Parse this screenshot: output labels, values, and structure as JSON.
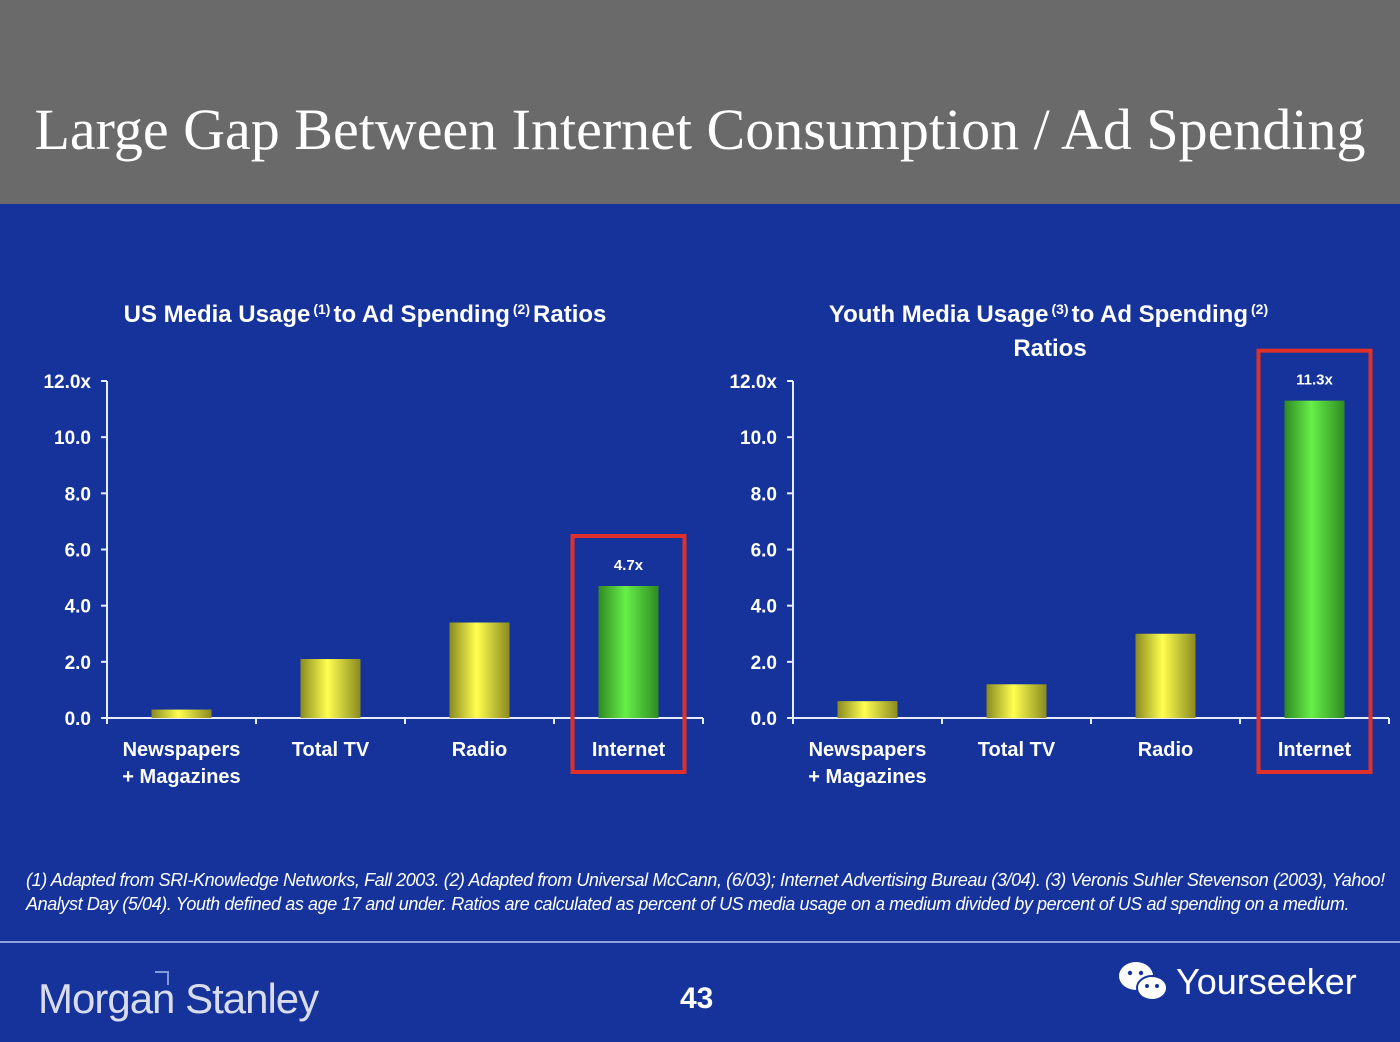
{
  "slide": {
    "title": "Large Gap Between Internet Consumption / Ad Spending",
    "page_number": "43",
    "logo": "Morgan Stanley",
    "watermark": "Yourseeker",
    "watermark_icon": "wechat-icon",
    "footnote": "(1) Adapted from SRI-Knowledge Networks, Fall 2003.  (2) Adapted from Universal McCann, (6/03); Internet Advertising Bureau (3/04). (3) Veronis Suhler Stevenson (2003), Yahoo! Analyst Day (5/04).  Youth defined as age 17 and under.  Ratios are calculated as percent of US media usage on a medium divided by percent of US ad spending on a medium."
  },
  "colors": {
    "background": "#15339a",
    "header": "#6a6a6a",
    "bar": "#e8e83a",
    "highlight_bar": "#5ee83a",
    "highlight_box": "#e0302a"
  },
  "chart_data": [
    {
      "type": "bar",
      "title_parts": {
        "a": "US Media Usage",
        "sup1": "(1)",
        "b": "to Ad Spending",
        "sup2": "(2)",
        "c": "Ratios"
      },
      "categories": [
        "Newspapers + Magazines",
        "Total TV",
        "Radio",
        "Internet"
      ],
      "values": [
        0.3,
        2.1,
        3.4,
        4.7
      ],
      "data_labels": [
        null,
        null,
        null,
        "4.7x"
      ],
      "highlight": "Internet",
      "yticks": [
        "0.0",
        "2.0",
        "4.0",
        "6.0",
        "8.0",
        "10.0",
        "12.0x"
      ],
      "ylim": [
        0,
        12
      ],
      "grid": false
    },
    {
      "type": "bar",
      "title_parts": {
        "a": "Youth Media Usage",
        "sup1": "(3)",
        "b": "to Ad Spending",
        "sup2": "(2)",
        "c": "Ratios"
      },
      "categories": [
        "Newspapers + Magazines",
        "Total TV",
        "Radio",
        "Internet"
      ],
      "values": [
        0.6,
        1.2,
        3.0,
        11.3
      ],
      "data_labels": [
        null,
        null,
        null,
        "11.3x"
      ],
      "highlight": "Internet",
      "yticks": [
        "0.0",
        "2.0",
        "4.0",
        "6.0",
        "8.0",
        "10.0",
        "12.0x"
      ],
      "ylim": [
        0,
        12
      ],
      "grid": false
    }
  ]
}
